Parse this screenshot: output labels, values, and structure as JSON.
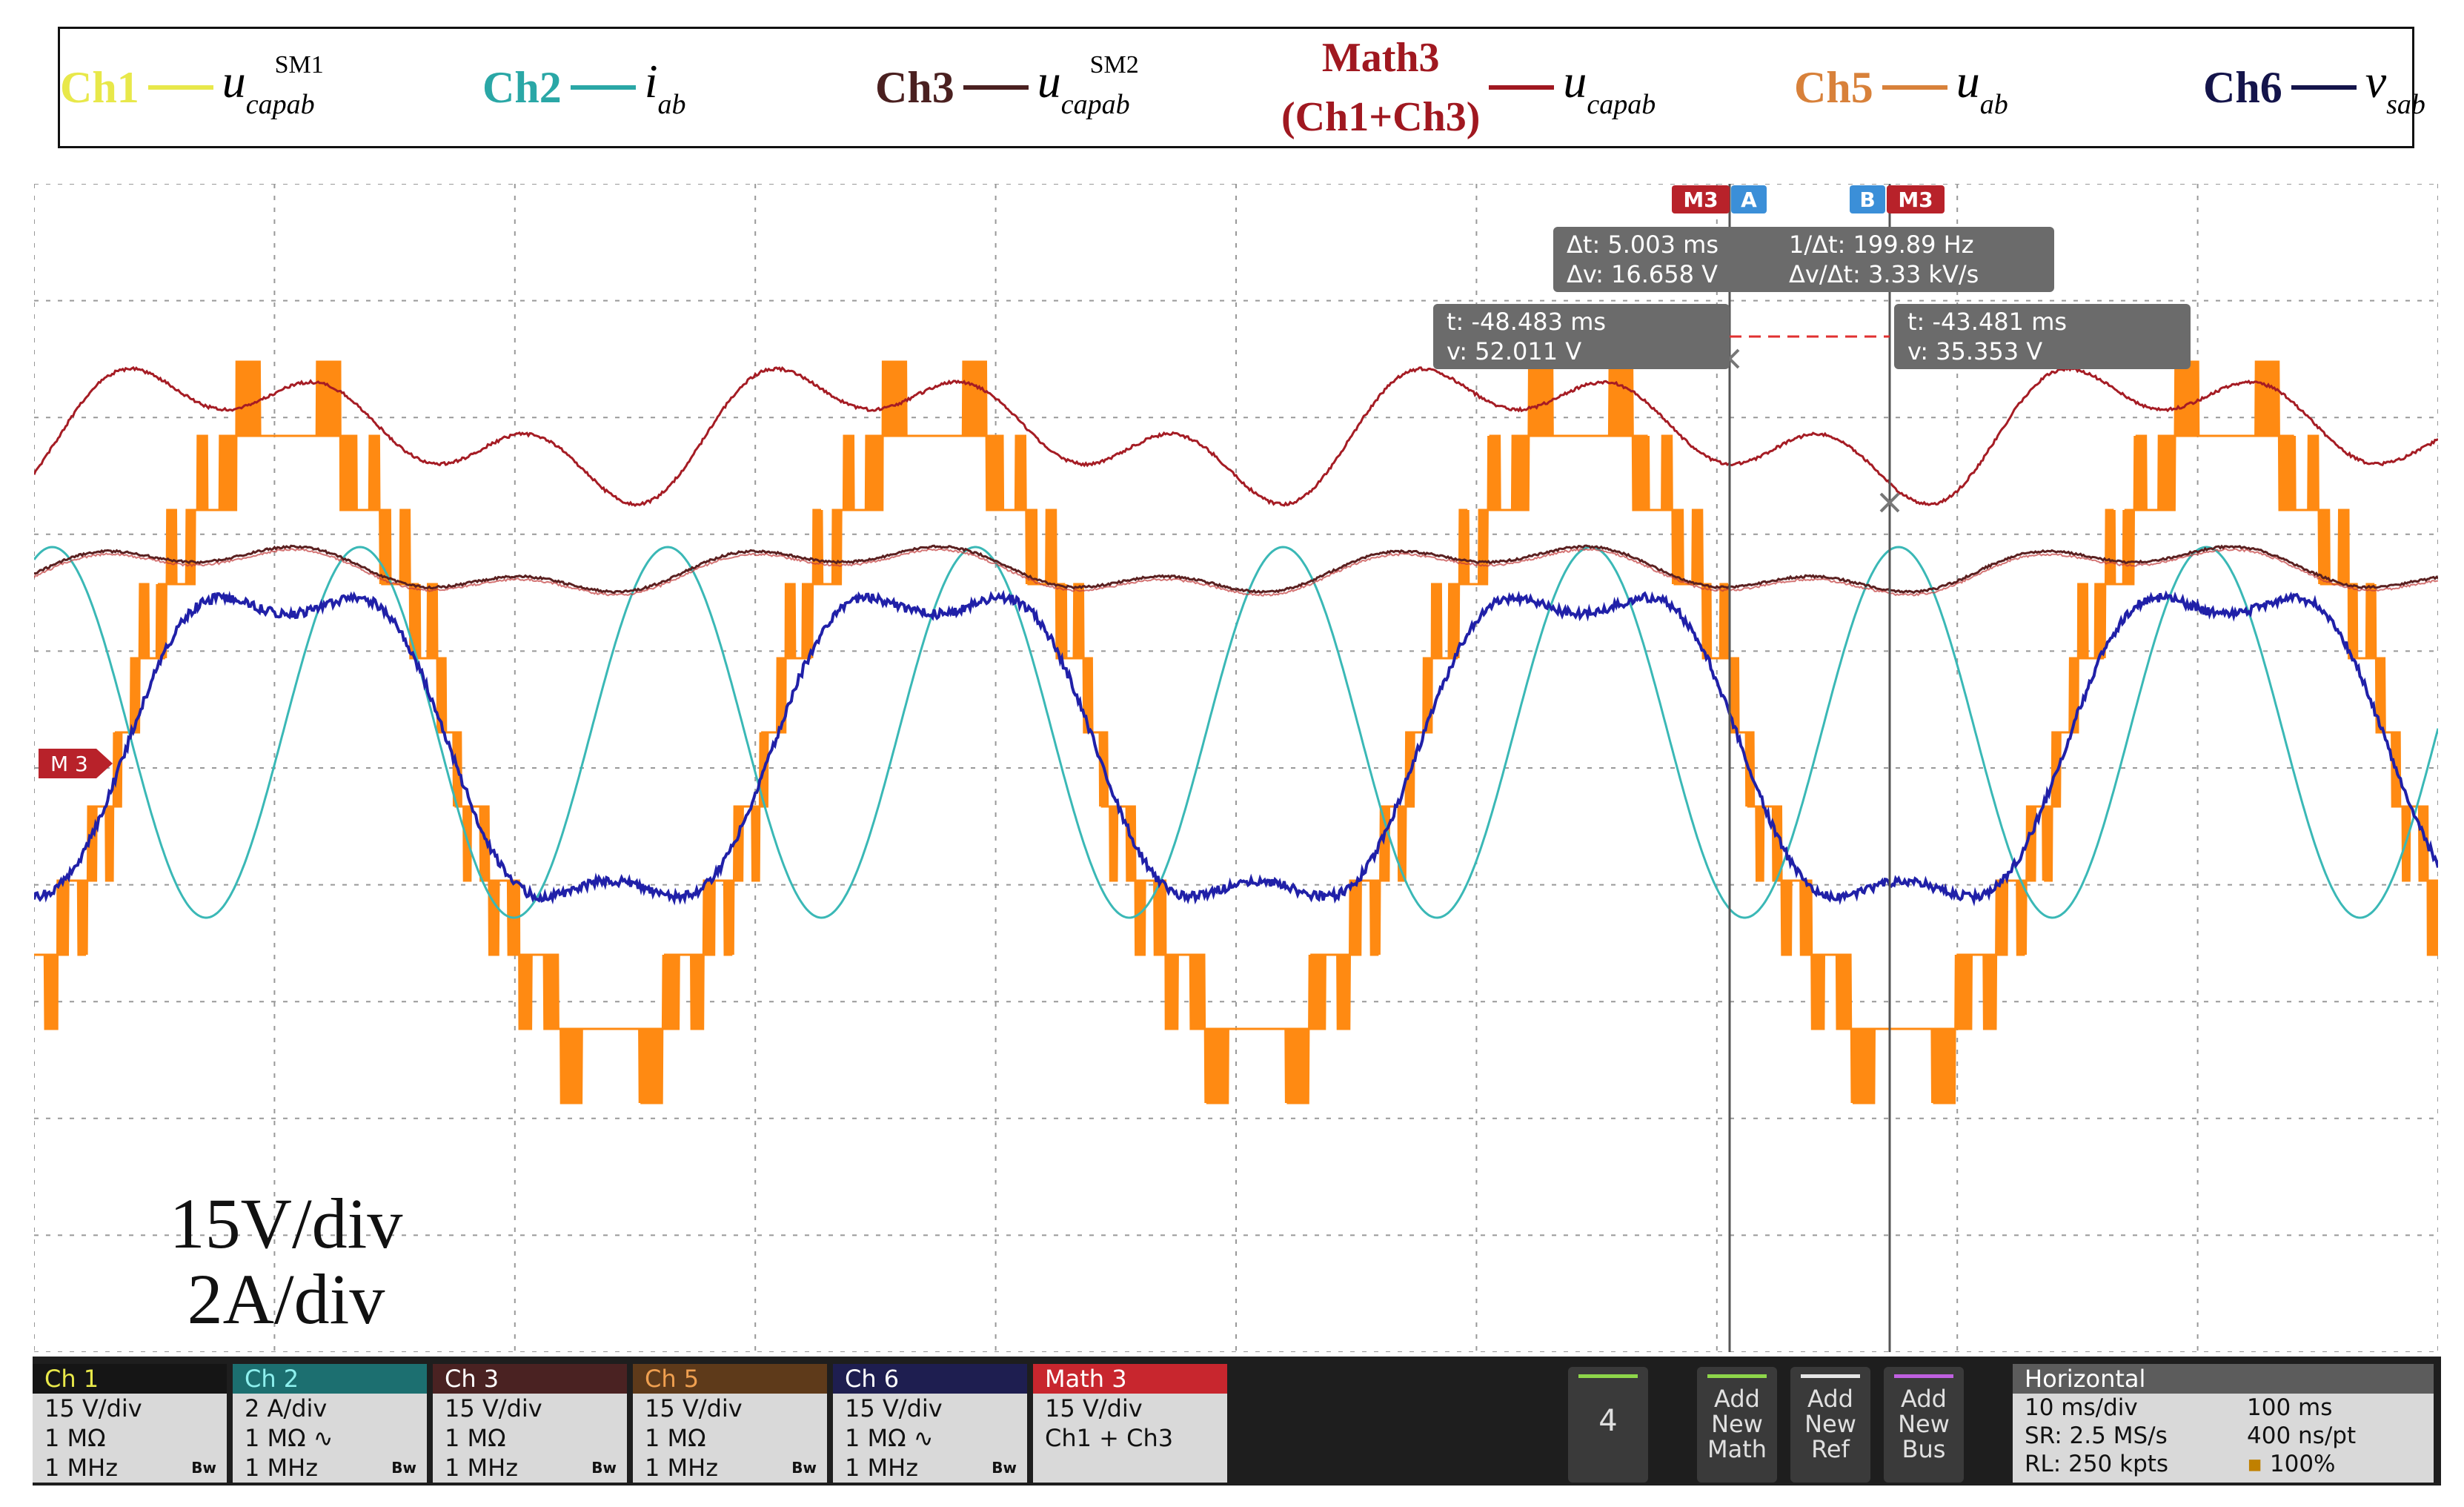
{
  "legend": {
    "ch1": {
      "label": "Ch1",
      "symbol": "u",
      "sup": "SM1",
      "sub": "capab",
      "color": "#e8e84a"
    },
    "ch2": {
      "label": "Ch2",
      "symbol": "i",
      "sub": "ab",
      "color": "#2aa7a6"
    },
    "ch3": {
      "label": "Ch3",
      "symbol": "u",
      "sup": "SM2",
      "sub": "capab",
      "color": "#4a2020"
    },
    "math3": {
      "label_line1": "Math3",
      "label_line2": "(Ch1+Ch3)",
      "symbol": "u",
      "sub": "capab",
      "color": "#a01820"
    },
    "ch5": {
      "label": "Ch5",
      "symbol": "u",
      "sub": "ab",
      "color": "#d8813a"
    },
    "ch6": {
      "label": "Ch6",
      "symbol": "v",
      "sub": "sab",
      "color": "#14144a"
    }
  },
  "scope": {
    "scale_line1": "15V/div",
    "scale_line2": "2A/div",
    "m3_marker": "M 3",
    "cursor_a_tag": "A",
    "cursor_b_tag": "B",
    "m3_tag": "M3",
    "delta_readout": {
      "dt": "Δt: 5.003 ms",
      "inv_dt": "1/Δt: 199.89 Hz",
      "dv": "Δv: 16.658 V",
      "dv_dt": "Δv/Δt: 3.33 kV/s"
    },
    "cursor_a": {
      "t": "t: -48.483 ms",
      "v": "v: 52.011 V"
    },
    "cursor_b": {
      "t": "t: -43.481 ms",
      "v": "v: 35.353 V"
    }
  },
  "channels": [
    {
      "header": "Ch 1",
      "color": "#e8e84a",
      "header_bg": "#151515",
      "header_fg": "#e8e84a",
      "scale": "15 V/div",
      "impedance": "1 MΩ",
      "bw": "1 MHz"
    },
    {
      "header": "Ch 2",
      "color": "#2aa7a6",
      "header_bg": "#1c6f70",
      "header_fg": "#8ef0ee",
      "scale": "2 A/div",
      "impedance": "1 MΩ",
      "bw": "1 MHz",
      "ac": "∿"
    },
    {
      "header": "Ch 3",
      "color": "#5a2a2a",
      "header_bg": "#4a2222",
      "header_fg": "#ffffff",
      "scale": "15 V/div",
      "impedance": "1 MΩ",
      "bw": "1 MHz"
    },
    {
      "header": "Ch 5",
      "color": "#d8813a",
      "header_bg": "#5e3a1a",
      "header_fg": "#f0a050",
      "scale": "15 V/div",
      "impedance": "1 MΩ",
      "bw": "1 MHz"
    },
    {
      "header": "Ch 6",
      "color": "#1a1a5a",
      "header_bg": "#1e1e50",
      "header_fg": "#ffffff",
      "scale": "15 V/div",
      "impedance": "1 MΩ",
      "bw": "1 MHz",
      "ac": "∿"
    }
  ],
  "math_badge": {
    "header": "Math 3",
    "scale": "15 V/div",
    "expr": "Ch1 + Ch3",
    "header_bg": "#c8262e"
  },
  "bw_icon": "Bw",
  "buttons": {
    "num": "4",
    "add_math": [
      "Add",
      "New",
      "Math"
    ],
    "add_ref": [
      "Add",
      "New",
      "Ref"
    ],
    "add_bus": [
      "Add",
      "New",
      "Bus"
    ]
  },
  "horizontal": {
    "header": "Horizontal",
    "scale": "10 ms/div",
    "record": "100 ms",
    "sr": "SR: 2.5 MS/s",
    "pt": "400 ns/pt",
    "rl": "RL: 250 kpts",
    "pct": "100%"
  }
}
